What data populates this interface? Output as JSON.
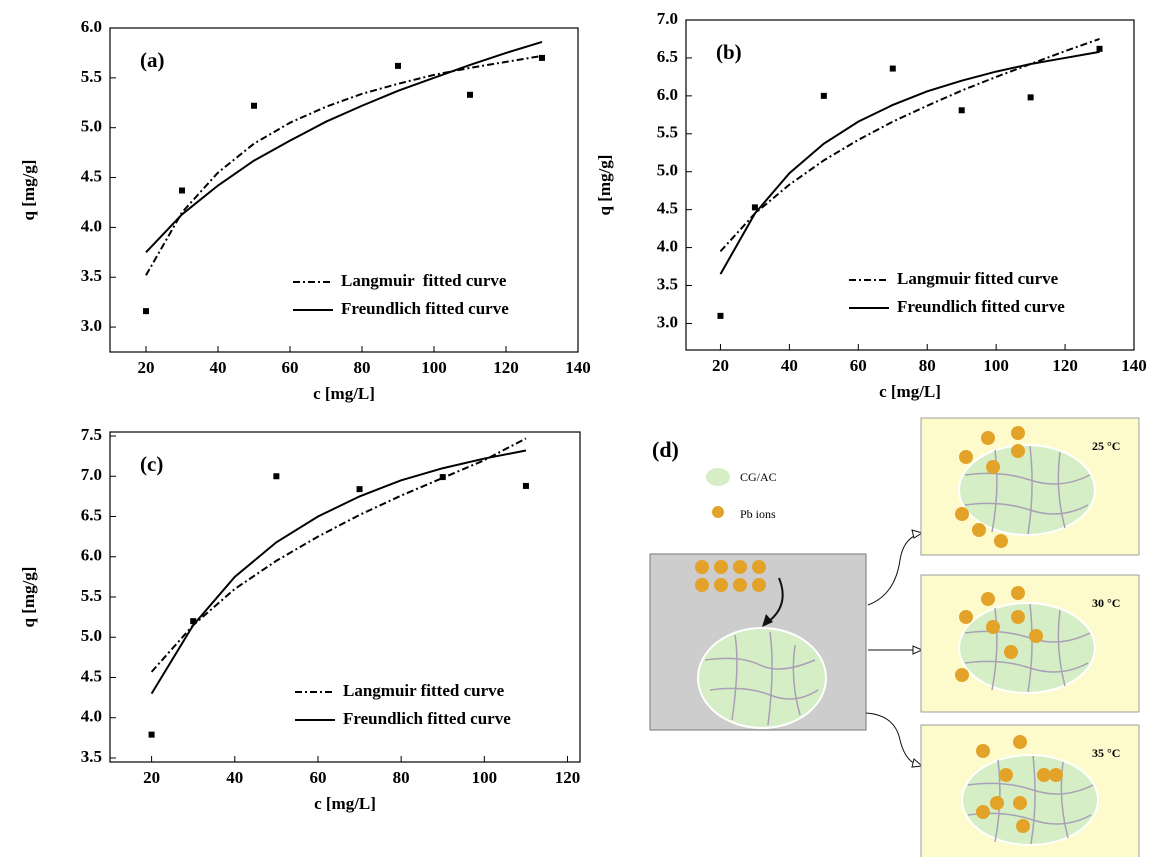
{
  "chart_data": [
    {
      "type": "line",
      "panel_label": "(a)",
      "x_label": "c [mg/L]",
      "y_label": "q [mg/g]",
      "x": [
        20,
        30,
        40,
        50,
        60,
        70,
        80,
        90,
        100,
        110,
        120,
        130
      ],
      "series": [
        {
          "color": "#000000",
          "line_style": "none",
          "marker": "square",
          "values": [
            3.16,
            4.37,
            null,
            5.22,
            null,
            null,
            null,
            5.62,
            null,
            5.33,
            null,
            5.7
          ]
        },
        {
          "name": "Langmuir  fitted curve",
          "color": "#000000",
          "line_style": "dashdot",
          "values": [
            3.52,
            4.15,
            4.55,
            4.84,
            5.05,
            5.21,
            5.34,
            5.44,
            5.53,
            5.6,
            5.66,
            5.72
          ]
        },
        {
          "name": "Freundlich fitted curve",
          "color": "#000000",
          "line_style": "solid",
          "values": [
            3.75,
            4.13,
            4.42,
            4.67,
            4.87,
            5.06,
            5.22,
            5.37,
            5.5,
            5.63,
            5.75,
            5.86
          ]
        }
      ],
      "xlim": [
        10,
        140
      ],
      "xticks": [
        20,
        40,
        60,
        80,
        100,
        120,
        140
      ],
      "ylim": [
        2.75,
        6.0
      ],
      "yticks": [
        {
          "value": 3,
          "label": "3.0"
        },
        3.5,
        {
          "value": 4,
          "label": "4.0"
        },
        4.5,
        {
          "value": 5,
          "label": "5.0"
        },
        5.5,
        {
          "value": 6,
          "label": "6.0"
        }
      ],
      "legend": "lower right"
    },
    {
      "type": "line",
      "panel_label": "(b)",
      "x_label": "c [mg/L]",
      "y_label": "q [mg/g]",
      "x": [
        20,
        30,
        40,
        50,
        60,
        70,
        80,
        90,
        100,
        110,
        120,
        130
      ],
      "series": [
        {
          "color": "#000000",
          "line_style": "none",
          "marker": "square",
          "values": [
            3.1,
            4.53,
            null,
            6.0,
            null,
            6.36,
            null,
            5.81,
            null,
            5.98,
            null,
            6.62
          ]
        },
        {
          "name": "Langmuir fitted curve",
          "color": "#000000",
          "line_style": "dashdot",
          "values": [
            3.95,
            4.45,
            4.83,
            5.15,
            5.42,
            5.66,
            5.87,
            6.07,
            6.25,
            6.42,
            6.59,
            6.75
          ]
        },
        {
          "name": "Freundlich fitted curve",
          "color": "#000000",
          "line_style": "solid",
          "values": [
            3.65,
            4.45,
            4.98,
            5.37,
            5.66,
            5.88,
            6.06,
            6.2,
            6.32,
            6.42,
            6.5,
            6.58
          ]
        }
      ],
      "xlim": [
        10,
        140
      ],
      "xticks": [
        20,
        40,
        60,
        80,
        100,
        120,
        140
      ],
      "ylim": [
        2.65,
        7.0
      ],
      "yticks": [
        {
          "value": 3,
          "label": "3.0"
        },
        3.5,
        {
          "value": 4,
          "label": "4.0"
        },
        4.5,
        {
          "value": 5,
          "label": "5.0"
        },
        5.5,
        {
          "value": 6,
          "label": "6.0"
        },
        6.5,
        {
          "value": 7,
          "label": "7.0"
        }
      ],
      "legend": "lower right"
    },
    {
      "type": "line",
      "panel_label": "(c)",
      "x_label": "c [mg/L]",
      "y_label": "q [mg/g]",
      "x": [
        20,
        30,
        40,
        50,
        60,
        70,
        80,
        90,
        100,
        110
      ],
      "series": [
        {
          "color": "#000000",
          "line_style": "none",
          "marker": "square",
          "values": [
            3.79,
            5.2,
            null,
            7.0,
            null,
            6.84,
            null,
            6.99,
            null,
            6.88
          ]
        },
        {
          "name": "Langmuir fitted curve",
          "color": "#000000",
          "line_style": "dashdot",
          "values": [
            4.57,
            5.15,
            5.6,
            5.95,
            6.25,
            6.52,
            6.76,
            6.98,
            7.2,
            7.47
          ]
        },
        {
          "name": "Freundlich fitted curve",
          "color": "#000000",
          "line_style": "solid",
          "values": [
            4.3,
            5.15,
            5.75,
            6.18,
            6.5,
            6.75,
            6.95,
            7.1,
            7.22,
            7.32
          ]
        }
      ],
      "xlim": [
        10,
        123
      ],
      "xticks": [
        20,
        40,
        60,
        80,
        100,
        120
      ],
      "ylim": [
        3.45,
        7.55
      ],
      "yticks": [
        3.5,
        {
          "value": 4,
          "label": "4.0"
        },
        4.5,
        {
          "value": 5,
          "label": "5.0"
        },
        5.5,
        {
          "value": 6,
          "label": "6.0"
        },
        6.5,
        {
          "value": 7,
          "label": "7.0"
        },
        7.5
      ],
      "legend": "lower right"
    }
  ],
  "diagram": {
    "label": "(d)",
    "legend": [
      "CG/AC",
      "Pb ions"
    ],
    "temperatures": [
      "25 °C",
      "30 °C",
      "35 °C"
    ]
  }
}
